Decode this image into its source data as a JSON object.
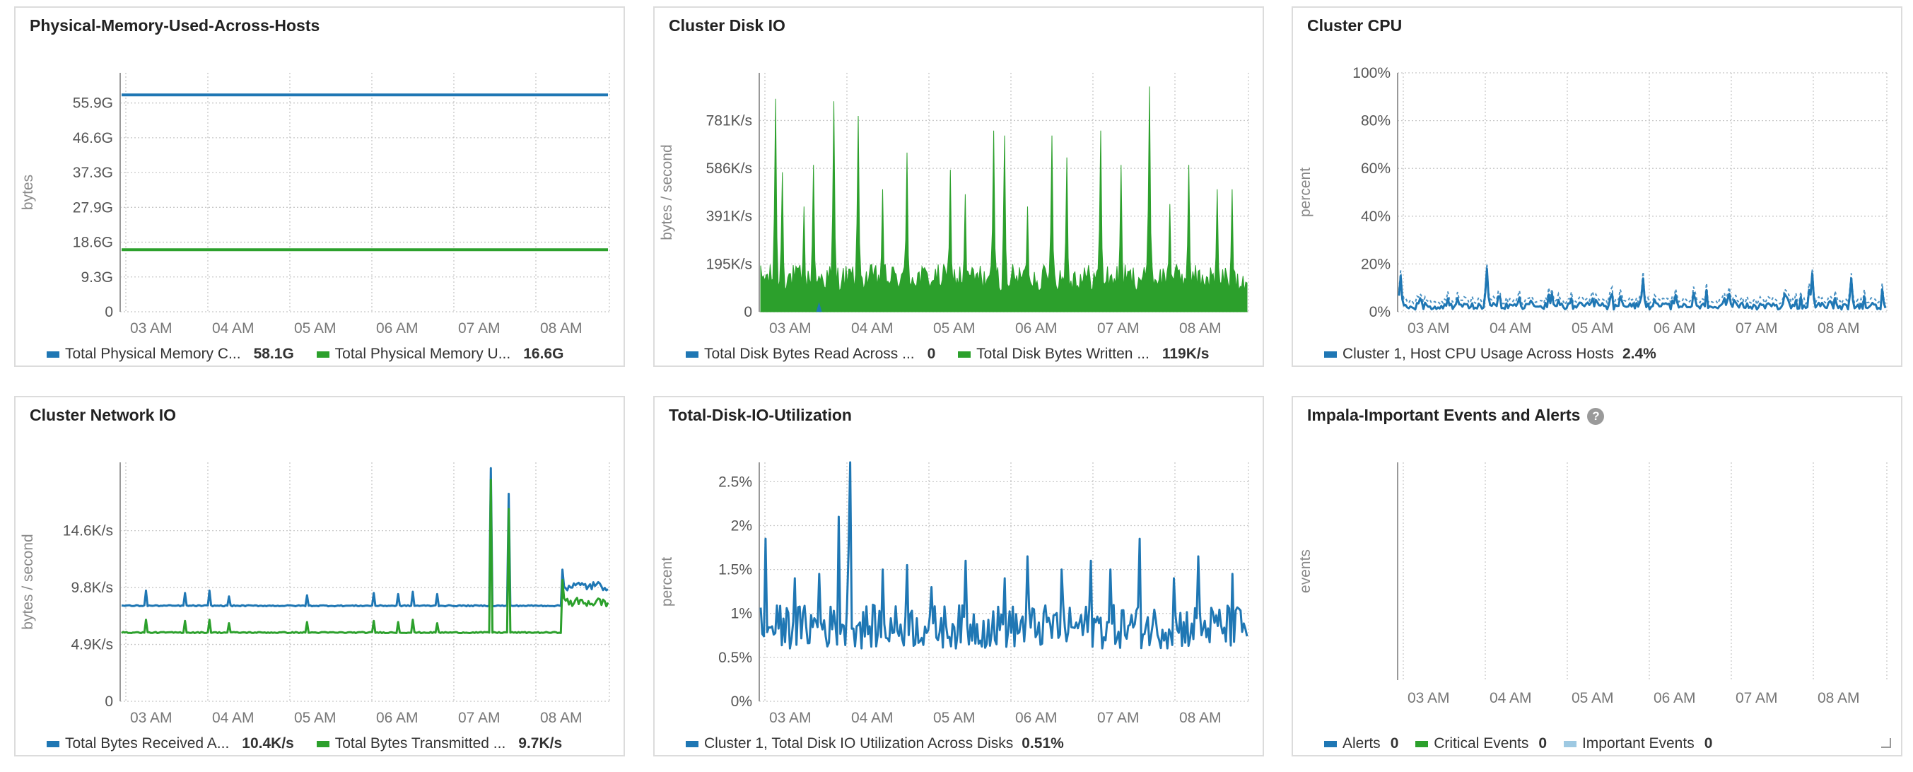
{
  "colors": {
    "blue": "#1f77b4",
    "green": "#2ca02c",
    "lightblue": "#9ec9e2",
    "grid": "#c8c8c8",
    "axis": "#999999"
  },
  "time_labels": [
    "03 AM",
    "04 AM",
    "05 AM",
    "06 AM",
    "07 AM",
    "08 AM"
  ],
  "panels": {
    "memory": {
      "title": "Physical-Memory-Used-Across-Hosts",
      "legend": [
        {
          "label": "Total Physical Memory C...",
          "value": "58.1G",
          "color": "#1f77b4"
        },
        {
          "label": "Total Physical Memory U...",
          "value": "16.6G",
          "color": "#2ca02c"
        }
      ]
    },
    "disk_io": {
      "title": "Cluster Disk IO",
      "legend": [
        {
          "label": "Total Disk Bytes Read Across ...",
          "value": "0",
          "color": "#1f77b4"
        },
        {
          "label": "Total Disk Bytes Written ...",
          "value": "119K/s",
          "color": "#2ca02c"
        }
      ]
    },
    "cpu": {
      "title": "Cluster CPU",
      "legend": [
        {
          "label": "Cluster 1, Host CPU Usage Across Hosts",
          "value": "2.4%",
          "color": "#1f77b4"
        }
      ]
    },
    "network": {
      "title": "Cluster Network IO",
      "legend": [
        {
          "label": "Total Bytes Received A...",
          "value": "10.4K/s",
          "color": "#1f77b4"
        },
        {
          "label": "Total Bytes Transmitted ...",
          "value": "9.7K/s",
          "color": "#2ca02c"
        }
      ]
    },
    "disk_util": {
      "title": "Total-Disk-IO-Utilization",
      "legend": [
        {
          "label": "Cluster 1, Total Disk IO Utilization Across Disks",
          "value": "0.51%",
          "color": "#1f77b4"
        }
      ]
    },
    "events": {
      "title": "Impala-Important Events and Alerts",
      "help": "?",
      "legend": [
        {
          "label": "Alerts",
          "value": "0",
          "color": "#1f77b4"
        },
        {
          "label": "Critical Events",
          "value": "0",
          "color": "#2ca02c"
        },
        {
          "label": "Important Events",
          "value": "0",
          "color": "#9ec9e2"
        }
      ]
    }
  },
  "chart_data": [
    {
      "id": "memory",
      "type": "line",
      "title": "Physical-Memory-Used-Across-Hosts",
      "ylabel": "bytes",
      "xlabel": "",
      "x_range": [
        "02:45",
        "08:45"
      ],
      "ylim": [
        0,
        64
      ],
      "yticks": [
        "0",
        "9.3G",
        "18.6G",
        "27.9G",
        "37.3G",
        "46.6G",
        "55.9G"
      ],
      "series": [
        {
          "name": "Total Physical Memory C...",
          "color": "#1f77b4",
          "constant": 58.1,
          "pattern": "flat"
        },
        {
          "name": "Total Physical Memory U...",
          "color": "#2ca02c",
          "constant": 16.6,
          "pattern": "flat"
        }
      ]
    },
    {
      "id": "disk_io",
      "type": "area",
      "title": "Cluster Disk IO",
      "ylabel": "bytes / second",
      "xlabel": "",
      "x_range": [
        "02:45",
        "08:45"
      ],
      "ylim": [
        0,
        976
      ],
      "yticks": [
        "0",
        "195K/s",
        "391K/s",
        "586K/s",
        "781K/s"
      ],
      "series": [
        {
          "name": "Total Disk Bytes Written ...",
          "color": "#2ca02c",
          "base": 140,
          "noise": 110,
          "pattern": "spiky",
          "peaks": [
            [
              0.03,
              870
            ],
            [
              0.045,
              570
            ],
            [
              0.09,
              430
            ],
            [
              0.11,
              600
            ],
            [
              0.15,
              860
            ],
            [
              0.2,
              800
            ],
            [
              0.25,
              500
            ],
            [
              0.3,
              650
            ],
            [
              0.39,
              580
            ],
            [
              0.42,
              480
            ],
            [
              0.48,
              740
            ],
            [
              0.5,
              720
            ],
            [
              0.55,
              430
            ],
            [
              0.6,
              720
            ],
            [
              0.63,
              630
            ],
            [
              0.7,
              740
            ],
            [
              0.74,
              600
            ],
            [
              0.8,
              920
            ],
            [
              0.84,
              440
            ],
            [
              0.88,
              600
            ],
            [
              0.94,
              500
            ],
            [
              0.97,
              500
            ]
          ]
        },
        {
          "name": "Total Disk Bytes Read Across ...",
          "color": "#1f77b4",
          "pattern": "blip",
          "peaks": [
            [
              0.12,
              40
            ]
          ]
        }
      ]
    },
    {
      "id": "cpu",
      "type": "line",
      "title": "Cluster CPU",
      "ylabel": "percent",
      "xlabel": "",
      "x_range": [
        "02:45",
        "08:45"
      ],
      "ylim": [
        0,
        100
      ],
      "yticks": [
        "0%",
        "20%",
        "40%",
        "60%",
        "80%",
        "100%"
      ],
      "series": [
        {
          "name": "Cluster 1, Host CPU Usage Across Hosts",
          "color": "#1f77b4",
          "base": 2.4,
          "noise": 1.5,
          "pattern": "cpu",
          "peaks": [
            [
              0.005,
              15
            ],
            [
              0.18,
              18
            ],
            [
              0.5,
              14
            ],
            [
              0.85,
              16
            ],
            [
              0.93,
              14
            ]
          ]
        }
      ]
    },
    {
      "id": "network",
      "type": "line",
      "title": "Cluster Network IO",
      "ylabel": "bytes / second",
      "xlabel": "",
      "x_range": [
        "02:45",
        "08:45"
      ],
      "ylim": [
        0,
        20.5
      ],
      "yticks": [
        "0",
        "4.9K/s",
        "9.8K/s",
        "14.6K/s"
      ],
      "series": [
        {
          "name": "Total Bytes Received A...",
          "color": "#1f77b4",
          "base": 8.2,
          "noise": 0.1,
          "pattern": "net",
          "tail": 9.9,
          "peaks": [
            [
              0.05,
              9.5
            ],
            [
              0.13,
              9.3
            ],
            [
              0.18,
              9.5
            ],
            [
              0.22,
              9.0
            ],
            [
              0.38,
              9.1
            ],
            [
              0.52,
              9.3
            ],
            [
              0.57,
              9.2
            ],
            [
              0.6,
              9.4
            ],
            [
              0.65,
              9.2
            ],
            [
              0.758,
              20
            ],
            [
              0.795,
              17.8
            ],
            [
              0.905,
              11.3
            ]
          ]
        },
        {
          "name": "Total Bytes Transmitted ...",
          "color": "#2ca02c",
          "base": 5.9,
          "noise": 0.1,
          "pattern": "net",
          "tail": 8.5,
          "peaks": [
            [
              0.05,
              7.0
            ],
            [
              0.13,
              6.9
            ],
            [
              0.18,
              7.0
            ],
            [
              0.22,
              6.7
            ],
            [
              0.38,
              6.8
            ],
            [
              0.52,
              6.9
            ],
            [
              0.57,
              6.8
            ],
            [
              0.6,
              7.0
            ],
            [
              0.65,
              6.7
            ],
            [
              0.758,
              19
            ],
            [
              0.795,
              16.5
            ],
            [
              0.905,
              10.4
            ]
          ]
        }
      ]
    },
    {
      "id": "disk_util",
      "type": "line",
      "title": "Total-Disk-IO-Utilization",
      "ylabel": "percent",
      "xlabel": "",
      "x_range": [
        "02:45",
        "08:45"
      ],
      "ylim": [
        0,
        2.72
      ],
      "yticks": [
        "0%",
        "0.5%",
        "1%",
        "1.5%",
        "2%",
        "2.5%"
      ],
      "series": [
        {
          "name": "Cluster 1, Total Disk IO Utilization Across Disks",
          "color": "#1f77b4",
          "base": 0.85,
          "noise": 0.25,
          "pattern": "noisy",
          "peaks": [
            [
              0.01,
              1.85
            ],
            [
              0.07,
              1.4
            ],
            [
              0.12,
              1.45
            ],
            [
              0.16,
              2.1
            ],
            [
              0.18,
              1.7
            ],
            [
              0.185,
              2.72
            ],
            [
              0.25,
              1.5
            ],
            [
              0.3,
              1.55
            ],
            [
              0.35,
              1.3
            ],
            [
              0.42,
              1.6
            ],
            [
              0.5,
              1.4
            ],
            [
              0.55,
              1.65
            ],
            [
              0.62,
              1.5
            ],
            [
              0.68,
              1.6
            ],
            [
              0.72,
              1.5
            ],
            [
              0.78,
              1.85
            ],
            [
              0.85,
              1.4
            ],
            [
              0.9,
              1.65
            ],
            [
              0.97,
              1.45
            ]
          ]
        }
      ]
    },
    {
      "id": "events",
      "type": "line",
      "title": "Impala-Important Events and Alerts",
      "ylabel": "events",
      "xlabel": "",
      "x_range": [
        "02:45",
        "08:45"
      ],
      "ylim": [
        0,
        1
      ],
      "yticks": [],
      "series": [
        {
          "name": "Alerts",
          "color": "#1f77b4",
          "values": []
        },
        {
          "name": "Critical Events",
          "color": "#2ca02c",
          "values": []
        },
        {
          "name": "Important Events",
          "color": "#9ec9e2",
          "values": []
        }
      ]
    }
  ]
}
